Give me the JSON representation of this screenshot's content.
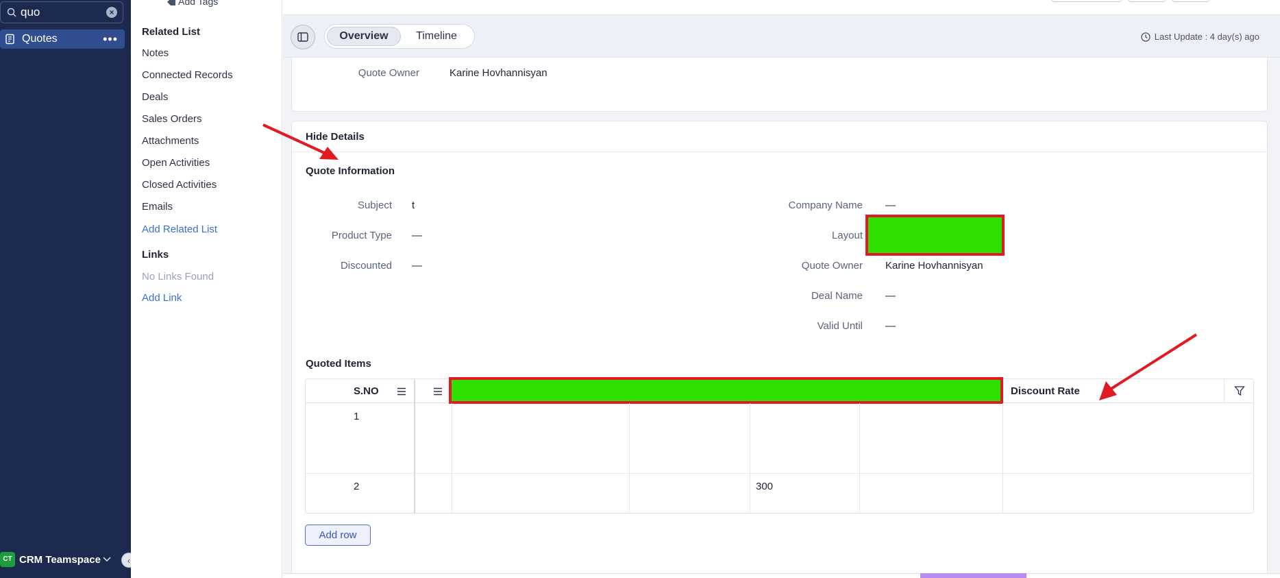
{
  "sidebar": {
    "search_value": "quo",
    "nav_item": "Quotes",
    "more": "•••",
    "teamspace_badge": "CT",
    "teamspace_label": "CRM Teamspace"
  },
  "related": {
    "add_tags": "Add Tags",
    "title": "Related List",
    "items": [
      "Notes",
      "Connected Records",
      "Deals",
      "Sales Orders",
      "Attachments",
      "Open Activities",
      "Closed Activities",
      "Emails"
    ],
    "add_related": "Add Related List",
    "links_title": "Links",
    "no_links": "No Links Found",
    "add_link": "Add Link"
  },
  "header": {
    "tabs": [
      "Overview",
      "Timeline"
    ],
    "last_update": "Last Update : 4 day(s) ago"
  },
  "summary": {
    "owner_label": "Quote Owner",
    "owner_value": "Karine Hovhannisyan"
  },
  "details": {
    "hide_details": "Hide Details",
    "section_title": "Quote Information",
    "left_fields": [
      {
        "label": "Subject",
        "value": "t"
      },
      {
        "label": "Product Type",
        "value": "—"
      },
      {
        "label": "Discounted",
        "value": "—"
      }
    ],
    "right_fields": [
      {
        "label": "Company Name",
        "value": "—"
      },
      {
        "label": "Layout",
        "value": ""
      },
      {
        "label": "Quote Owner",
        "value": "Karine Hovhannisyan"
      },
      {
        "label": "Deal Name",
        "value": "—"
      },
      {
        "label": "Valid Until",
        "value": "—"
      }
    ]
  },
  "quoted_items": {
    "title": "Quoted Items",
    "col_sno": "S.NO",
    "col_discount": "Discount Rate",
    "rows": [
      {
        "sno": "1",
        "value": ""
      },
      {
        "sno": "2",
        "value": "300"
      }
    ],
    "add_row": "Add row"
  },
  "colors": {
    "sidebar_bg": "#1b2a4e",
    "redaction_fill": "#2ee000",
    "redaction_border": "#e01b24",
    "link": "#3b6fd6",
    "annotation_arrow": "#e01b24"
  }
}
